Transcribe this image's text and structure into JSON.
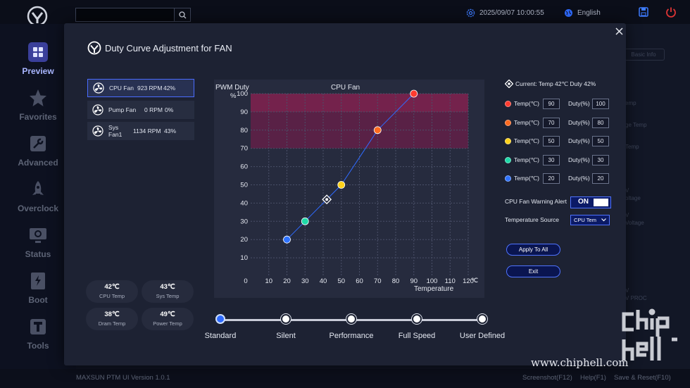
{
  "app": {
    "datetime": "2025/09/07 10:00:55",
    "language": "English",
    "version": "MAXSUN PTM UI Version 1.0.1",
    "screenshot": "Screenshot(F12)",
    "help": "Help(F1)",
    "save_reset": "Save & Reset(F10)",
    "watermark": "www.chiphell.com",
    "watermark_logo": "chip hell"
  },
  "sidebar": {
    "items": [
      {
        "label": "Preview",
        "icon": "grid-icon",
        "active": true
      },
      {
        "label": "Favorites",
        "icon": "star-icon"
      },
      {
        "label": "Advanced",
        "icon": "wrench-icon"
      },
      {
        "label": "Overclock",
        "icon": "rocket-icon"
      },
      {
        "label": "Status",
        "icon": "monitor-icon"
      },
      {
        "label": "Boot",
        "icon": "ssd-icon"
      },
      {
        "label": "Tools",
        "icon": "tools-icon"
      }
    ]
  },
  "background_right": {
    "items": [
      "Basic Info",
      "emp",
      "ge Temp",
      "Temp",
      "V",
      "oltage",
      "V",
      "Voltage",
      "V",
      "V PROC"
    ]
  },
  "modal": {
    "title": "Duty Curve Adjustment for FAN",
    "fans": [
      {
        "name": "CPU Fan",
        "rpm": "923 RPM",
        "duty": "42%",
        "selected": true
      },
      {
        "name": "Pump Fan",
        "rpm": "0 RPM",
        "duty": "0%"
      },
      {
        "name": "Sys Fan1",
        "rpm": "1134 RPM",
        "duty": "43%"
      }
    ],
    "temps": [
      {
        "value": "42℃",
        "label": "CPU Temp"
      },
      {
        "value": "43℃",
        "label": "Sys Temp"
      },
      {
        "value": "38℃",
        "label": "Dram Temp"
      },
      {
        "value": "49℃",
        "label": "Power Temp"
      }
    ],
    "current": "Current: Temp 42℃  Duty 42%",
    "temp_label": "Temp(℃)",
    "duty_label": "Duty(%)",
    "points": [
      {
        "temp": "90",
        "duty": "100",
        "color": "#ff3b2f"
      },
      {
        "temp": "70",
        "duty": "80",
        "color": "#ff6a1f"
      },
      {
        "temp": "50",
        "duty": "50",
        "color": "#ffd21a"
      },
      {
        "temp": "30",
        "duty": "30",
        "color": "#1fd9a8"
      },
      {
        "temp": "20",
        "duty": "20",
        "color": "#2f73ff"
      }
    ],
    "warning_label": "CPU Fan Warning Alert",
    "warning_value": "ON",
    "source_label": "Temperature Source",
    "source_value": "CPU Tem",
    "apply_label": "Apply To All",
    "exit_label": "Exit",
    "presets": [
      "Standard",
      "Silent",
      "Performance",
      "Full Speed",
      "User Defined"
    ],
    "active_preset": "Standard"
  },
  "chart_data": {
    "type": "line",
    "title": "CPU Fan",
    "ylabel": "PWM Duty",
    "y_unit": "%",
    "xlabel": "Temperature",
    "x_unit": "℃",
    "xlim": [
      0,
      120
    ],
    "ylim": [
      0,
      100
    ],
    "x_ticks": [
      0,
      10,
      20,
      30,
      40,
      50,
      60,
      70,
      80,
      90,
      100,
      110,
      120
    ],
    "y_ticks": [
      10,
      20,
      30,
      40,
      50,
      60,
      70,
      80,
      90,
      100
    ],
    "series": [
      {
        "values": [
          {
            "x": 20,
            "y": 20,
            "color": "#2f73ff"
          },
          {
            "x": 30,
            "y": 30,
            "color": "#1fd9a8"
          },
          {
            "x": 50,
            "y": 50,
            "color": "#ffd21a"
          },
          {
            "x": 70,
            "y": 80,
            "color": "#ff6a1f"
          },
          {
            "x": 90,
            "y": 100,
            "color": "#ff3b2f"
          }
        ]
      }
    ],
    "current_point": {
      "x": 42,
      "y": 42
    },
    "warning_band_y": [
      70,
      100
    ],
    "grid": true
  }
}
